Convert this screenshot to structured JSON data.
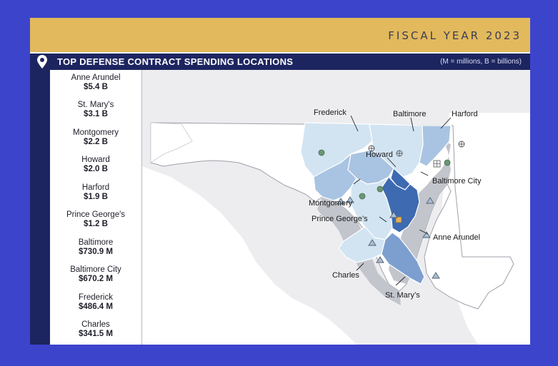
{
  "header": {
    "fiscal_year": "FISCAL YEAR 2023",
    "title": "TOP DEFENSE CONTRACT SPENDING LOCATIONS",
    "units_note": "(M = millions, B = billions)"
  },
  "locations": [
    {
      "name": "Anne Arundel",
      "amount": "$5.4 B"
    },
    {
      "name": "St. Mary's",
      "amount": "$3.1 B"
    },
    {
      "name": "Montgomery",
      "amount": "$2.2 B"
    },
    {
      "name": "Howard",
      "amount": "$2.0 B"
    },
    {
      "name": "Harford",
      "amount": "$1.9 B"
    },
    {
      "name": "Prince George's",
      "amount": "$1.2 B"
    },
    {
      "name": "Baltimore",
      "amount": "$730.9 M"
    },
    {
      "name": "Baltimore City",
      "amount": "$670.2 M"
    },
    {
      "name": "Frederick",
      "amount": "$486.4 M"
    },
    {
      "name": "Charles",
      "amount": "$341.5 M"
    }
  ],
  "map": {
    "labels": {
      "frederick": "Frederick",
      "baltimore": "Baltimore",
      "harford": "Harford",
      "howard": "Howard",
      "baltimore_city": "Baltimore City",
      "montgomery": "Montgomery",
      "prince_georges": "Prince George’s",
      "anne_arundel": "Anne Arundel",
      "charles": "Charles",
      "st_marys": "St. Mary’s"
    },
    "colors": {
      "background": "#ededf0",
      "land": "#ffffff",
      "water": "#c3c5cc",
      "shade_lightest": "#d2e4f2",
      "shade_light": "#a9c4e2",
      "shade_mid": "#7c9fcf",
      "shade_dark": "#3d6ab1",
      "marker": "#6b9773"
    }
  }
}
